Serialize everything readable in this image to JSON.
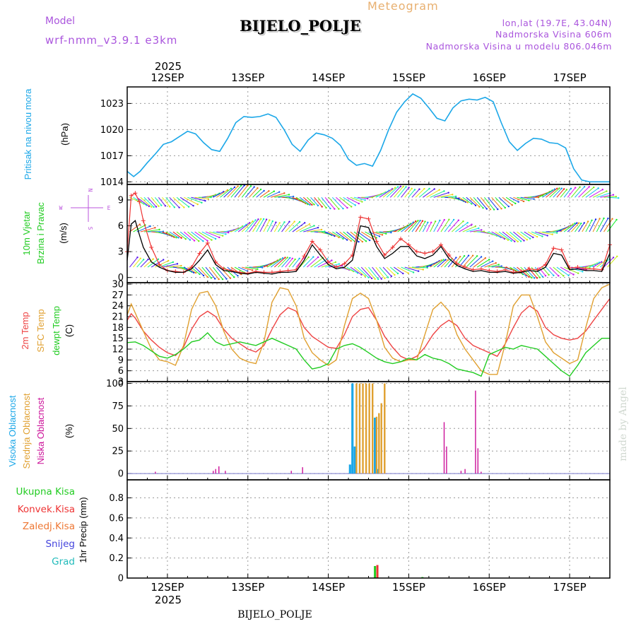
{
  "header": {
    "model_label": "Model",
    "model_value": "wrf-nmm_v3.9.1  e3km",
    "product": "Meteogram",
    "station": "BIJELO_POLJE",
    "coords": "lon,lat (19.7E, 43.04N)",
    "elev": "Nadmorska Visina 606m",
    "elev_model": "Nadmorska Visina u modelu 806.046m",
    "footer_station": "BIJELO_POLJE",
    "credit": "made by Angel"
  },
  "time_axis": {
    "year": "2025",
    "days": [
      "12SEP",
      "13SEP",
      "14SEP",
      "15SEP",
      "16SEP",
      "17SEP"
    ],
    "day_positions": [
      1,
      2,
      3,
      4,
      5,
      6
    ],
    "range": [
      0.5,
      6.5
    ]
  },
  "colors": {
    "pressure": "#1ba7e8",
    "wind_label": "#22cc22",
    "wind_speed": "#000000",
    "gust": "#ee3333",
    "t2m": "#ee4444",
    "sfc": "#e0a030",
    "dew": "#22cc22",
    "high_cloud": "#1ba7e8",
    "mid_cloud": "#e0a030",
    "low_cloud": "#cc1199",
    "total_precip": "#22cc22",
    "conv_precip": "#ee3333",
    "frozen": "#ee7733",
    "snow": "#4444dd",
    "graupel": "#22bbbb",
    "compass": "#bb55dd"
  },
  "chart_data": [
    {
      "type": "line",
      "ylabel_main": "Pritisak na nivou mora",
      "ylabel_unit": "(hPa)",
      "ylim": [
        1013.7,
        1024.9
      ],
      "yticks": [
        1014,
        1017,
        1020,
        1023
      ],
      "series": [
        {
          "x": [
            0.5,
            0.58,
            0.66,
            0.75,
            0.85,
            0.95,
            1.05,
            1.15,
            1.25,
            1.35,
            1.45,
            1.55,
            1.65,
            1.75,
            1.85,
            1.95,
            2.05,
            2.15,
            2.25,
            2.35,
            2.45,
            2.55,
            2.65,
            2.75,
            2.85,
            2.95,
            3.05,
            3.15,
            3.25,
            3.35,
            3.45,
            3.55,
            3.65,
            3.75,
            3.85,
            3.95,
            4.05,
            4.15,
            4.25,
            4.35,
            4.45,
            4.55,
            4.65,
            4.75,
            4.85,
            4.95,
            5.05,
            5.15,
            5.25,
            5.35,
            5.45,
            5.55,
            5.65,
            5.75,
            5.85,
            5.95,
            6.05,
            6.15,
            6.25,
            6.35,
            6.5
          ],
          "y": [
            1015.2,
            1014.6,
            1015.2,
            1016.2,
            1017.2,
            1018.3,
            1018.6,
            1019.2,
            1019.8,
            1019.5,
            1018.5,
            1017.7,
            1017.5,
            1019.0,
            1020.8,
            1021.5,
            1021.4,
            1021.5,
            1021.8,
            1021.4,
            1020.0,
            1018.3,
            1017.5,
            1018.8,
            1019.6,
            1019.4,
            1019.0,
            1018.2,
            1016.6,
            1015.9,
            1016.1,
            1015.8,
            1017.6,
            1020.0,
            1022.0,
            1023.2,
            1024.1,
            1023.6,
            1022.5,
            1021.3,
            1021.0,
            1022.5,
            1023.3,
            1023.5,
            1023.4,
            1023.7,
            1023.2,
            1020.8,
            1018.6,
            1017.6,
            1018.4,
            1019.0,
            1018.9,
            1018.5,
            1018.4,
            1017.9,
            1015.5,
            1014.2,
            1014.0,
            1014.0,
            1014.0
          ]
        }
      ]
    },
    {
      "type": "line",
      "ylabel_main": "10m Vjetar",
      "ylabel_sub": "Brzina i Pravac",
      "ylabel_unit": "(m/s)",
      "compass": {
        "n": "N",
        "s": "S",
        "w": "W",
        "e": "E"
      },
      "ylim": [
        -0.6,
        10.8
      ],
      "yticks": [
        0,
        3,
        6,
        9
      ],
      "wind_rows": [
        1.2,
        5.3,
        9.3
      ],
      "series": [
        {
          "name": "wind",
          "x": [
            0.5,
            0.55,
            0.6,
            0.65,
            0.7,
            0.8,
            0.9,
            1.0,
            1.1,
            1.2,
            1.3,
            1.4,
            1.5,
            1.6,
            1.7,
            1.8,
            1.9,
            2.0,
            2.1,
            2.2,
            2.3,
            2.4,
            2.5,
            2.6,
            2.7,
            2.8,
            2.9,
            3.0,
            3.1,
            3.2,
            3.3,
            3.4,
            3.5,
            3.6,
            3.7,
            3.8,
            3.9,
            4.0,
            4.1,
            4.2,
            4.3,
            4.4,
            4.5,
            4.6,
            4.7,
            4.8,
            4.9,
            5.0,
            5.1,
            5.2,
            5.3,
            5.4,
            5.5,
            5.6,
            5.7,
            5.8,
            5.9,
            6.0,
            6.1,
            6.2,
            6.3,
            6.4,
            6.5
          ],
          "y": [
            2.0,
            6.2,
            6.6,
            5.0,
            3.5,
            1.8,
            1.2,
            0.8,
            0.6,
            0.6,
            1.0,
            2.0,
            3.2,
            1.5,
            0.8,
            0.7,
            0.5,
            0.4,
            0.6,
            0.5,
            0.4,
            0.6,
            0.6,
            0.7,
            2.0,
            3.8,
            2.6,
            1.5,
            1.0,
            1.2,
            2.0,
            6.0,
            5.8,
            3.6,
            2.2,
            2.8,
            3.6,
            3.6,
            2.5,
            2.2,
            2.6,
            3.6,
            2.2,
            1.4,
            1.0,
            0.7,
            0.8,
            0.6,
            0.6,
            0.7,
            0.5,
            0.6,
            0.8,
            0.7,
            1.2,
            2.8,
            2.6,
            0.9,
            1.0,
            0.8,
            0.8,
            0.7,
            2.8
          ]
        },
        {
          "name": "gust",
          "x": [
            0.5,
            0.55,
            0.6,
            0.65,
            0.7,
            0.8,
            0.9,
            1.0,
            1.1,
            1.2,
            1.3,
            1.4,
            1.5,
            1.6,
            1.7,
            1.8,
            1.9,
            2.0,
            2.1,
            2.2,
            2.3,
            2.4,
            2.5,
            2.6,
            2.7,
            2.8,
            2.9,
            3.0,
            3.1,
            3.2,
            3.3,
            3.4,
            3.5,
            3.6,
            3.7,
            3.8,
            3.9,
            4.0,
            4.1,
            4.2,
            4.3,
            4.4,
            4.5,
            4.6,
            4.7,
            4.8,
            4.9,
            5.0,
            5.1,
            5.2,
            5.3,
            5.4,
            5.5,
            5.6,
            5.7,
            5.8,
            5.9,
            6.0,
            6.1,
            6.2,
            6.3,
            6.4,
            6.5
          ],
          "y": [
            3.0,
            9.5,
            9.8,
            8.8,
            6.6,
            3.5,
            1.5,
            0.8,
            0.7,
            0.6,
            1.2,
            2.8,
            4.0,
            1.8,
            1.0,
            0.8,
            0.6,
            0.5,
            0.7,
            0.6,
            0.6,
            0.7,
            0.8,
            0.9,
            2.5,
            4.2,
            3.2,
            1.8,
            1.2,
            1.6,
            2.6,
            7.0,
            6.8,
            4.2,
            2.6,
            3.5,
            4.5,
            3.8,
            3.0,
            2.8,
            3.0,
            3.8,
            2.6,
            1.6,
            1.2,
            0.9,
            1.0,
            0.8,
            0.7,
            0.9,
            0.6,
            0.7,
            1.0,
            0.9,
            1.5,
            3.4,
            3.2,
            1.1,
            1.2,
            1.0,
            1.0,
            0.9,
            3.8
          ]
        }
      ]
    },
    {
      "type": "line",
      "ylabel_a": "2m Temp",
      "ylabel_b": "SFC Temp",
      "ylabel_c": "dewpt Temp",
      "ylabel_unit": "(C)",
      "ylim": [
        3,
        30.4
      ],
      "yticks": [
        3,
        6,
        9,
        12,
        15,
        18,
        21,
        24,
        27,
        30
      ],
      "series": [
        {
          "name": "t2m",
          "x": [
            0.5,
            0.55,
            0.6,
            0.7,
            0.8,
            0.9,
            1.0,
            1.1,
            1.2,
            1.3,
            1.4,
            1.5,
            1.6,
            1.7,
            1.8,
            1.9,
            2.0,
            2.1,
            2.2,
            2.3,
            2.4,
            2.5,
            2.6,
            2.7,
            2.8,
            2.9,
            3.0,
            3.1,
            3.2,
            3.3,
            3.4,
            3.5,
            3.6,
            3.7,
            3.8,
            3.9,
            4.0,
            4.1,
            4.2,
            4.3,
            4.4,
            4.5,
            4.6,
            4.7,
            4.8,
            4.9,
            5.0,
            5.1,
            5.2,
            5.3,
            5.4,
            5.5,
            5.6,
            5.7,
            5.8,
            5.9,
            6.0,
            6.1,
            6.2,
            6.3,
            6.4,
            6.5
          ],
          "y": [
            20.0,
            21.8,
            20.6,
            17.0,
            14.5,
            12.5,
            11.0,
            10.2,
            12.5,
            17.5,
            21.0,
            22.5,
            21.0,
            17.5,
            15.0,
            13.5,
            12.0,
            11.2,
            13.0,
            17.5,
            21.5,
            23.5,
            22.5,
            18.0,
            15.5,
            14.0,
            12.5,
            12.2,
            16.0,
            21.0,
            23.0,
            23.5,
            20.0,
            15.5,
            12.5,
            10.0,
            9.0,
            10.0,
            12.5,
            16.0,
            18.5,
            20.0,
            18.5,
            15.0,
            13.0,
            12.0,
            11.0,
            10.0,
            13.5,
            18.0,
            22.0,
            24.0,
            22.5,
            18.0,
            16.0,
            15.0,
            14.5,
            15.0,
            17.0,
            20.0,
            23.0,
            26.0
          ]
        },
        {
          "name": "sfc",
          "x": [
            0.5,
            0.55,
            0.6,
            0.7,
            0.8,
            0.9,
            1.0,
            1.1,
            1.2,
            1.3,
            1.4,
            1.5,
            1.6,
            1.7,
            1.8,
            1.9,
            2.0,
            2.1,
            2.2,
            2.3,
            2.4,
            2.5,
            2.6,
            2.7,
            2.8,
            2.9,
            3.0,
            3.1,
            3.2,
            3.3,
            3.4,
            3.5,
            3.6,
            3.7,
            3.8,
            3.9,
            4.0,
            4.1,
            4.2,
            4.3,
            4.4,
            4.5,
            4.6,
            4.7,
            4.8,
            4.9,
            5.0,
            5.1,
            5.2,
            5.3,
            5.4,
            5.5,
            5.6,
            5.7,
            5.8,
            5.9,
            6.0,
            6.1,
            6.2,
            6.3,
            6.4,
            6.5
          ],
          "y": [
            21.5,
            24.5,
            22.0,
            17.0,
            12.0,
            9.0,
            8.5,
            7.5,
            13.0,
            23.0,
            27.5,
            28.0,
            24.0,
            17.0,
            12.0,
            9.5,
            8.5,
            8.0,
            14.0,
            25.0,
            29.0,
            28.5,
            24.0,
            15.0,
            11.0,
            9.0,
            7.5,
            9.0,
            18.5,
            26.0,
            27.5,
            26.0,
            20.0,
            12.5,
            9.5,
            8.5,
            9.0,
            9.0,
            16.0,
            23.0,
            25.0,
            22.5,
            16.0,
            12.0,
            9.0,
            6.0,
            5.0,
            5.0,
            13.5,
            24.0,
            27.0,
            27.0,
            21.0,
            14.0,
            11.0,
            9.5,
            8.0,
            9.0,
            18.0,
            26.0,
            29.0,
            30.0
          ]
        },
        {
          "name": "dew",
          "x": [
            0.5,
            0.6,
            0.7,
            0.8,
            0.9,
            1.0,
            1.1,
            1.2,
            1.3,
            1.4,
            1.5,
            1.6,
            1.7,
            1.8,
            1.9,
            2.0,
            2.1,
            2.2,
            2.3,
            2.4,
            2.5,
            2.6,
            2.7,
            2.8,
            2.9,
            3.0,
            3.1,
            3.2,
            3.3,
            3.4,
            3.5,
            3.6,
            3.7,
            3.8,
            3.9,
            4.0,
            4.1,
            4.2,
            4.3,
            4.4,
            4.5,
            4.6,
            4.7,
            4.8,
            4.9,
            5.0,
            5.1,
            5.2,
            5.3,
            5.4,
            5.5,
            5.6,
            5.7,
            5.8,
            5.9,
            6.0,
            6.1,
            6.2,
            6.3,
            6.4,
            6.5
          ],
          "y": [
            13.8,
            14.0,
            13.0,
            11.5,
            10.0,
            9.5,
            10.5,
            12.0,
            14.0,
            14.5,
            16.5,
            14.0,
            13.0,
            13.5,
            14.0,
            13.5,
            13.0,
            14.0,
            15.0,
            14.0,
            13.0,
            12.0,
            9.0,
            6.5,
            7.0,
            8.0,
            12.0,
            13.0,
            13.5,
            12.5,
            11.0,
            9.5,
            8.5,
            8.0,
            8.5,
            9.5,
            9.0,
            10.5,
            9.5,
            9.0,
            8.0,
            6.5,
            6.0,
            5.5,
            4.5,
            10.5,
            11.5,
            12.5,
            12.0,
            13.0,
            12.5,
            12.0,
            10.0,
            8.0,
            6.0,
            4.5,
            7.5,
            11.0,
            13.0,
            15.0,
            15.0
          ]
        }
      ]
    },
    {
      "type": "bar",
      "ylabel_a": "Visoka Oblacnost",
      "ylabel_b": "Srednja Oblacnost",
      "ylabel_c": "Niska  Oblacnost",
      "ylabel_unit": "(%)",
      "ylim": [
        -7,
        102
      ],
      "yticks": [
        0,
        25,
        50,
        75,
        100
      ],
      "series": [
        {
          "name": "high",
          "x": [
            3.27,
            3.3,
            3.33,
            3.58,
            3.62
          ],
          "y": [
            10,
            100,
            30,
            62,
            5
          ]
        },
        {
          "name": "mid",
          "x": [
            3.35,
            3.39,
            3.43,
            3.47,
            3.51,
            3.55,
            3.6,
            3.63,
            3.66,
            3.7
          ],
          "y": [
            100,
            100,
            100,
            100,
            100,
            100,
            63,
            67,
            78,
            100
          ]
        },
        {
          "name": "low",
          "x": [
            0.85,
            1.57,
            1.6,
            1.64,
            1.72,
            2.54,
            2.68,
            4.44,
            4.47,
            4.65,
            4.7,
            4.83,
            4.86,
            4.9
          ],
          "y": [
            2,
            3,
            5,
            8,
            3,
            3,
            7,
            57,
            30,
            3,
            5,
            92,
            28,
            2
          ]
        }
      ]
    },
    {
      "type": "bar",
      "legend": [
        "Ukupna  Kisa",
        "Konvek.Kisa",
        "Zaledj.Kisa",
        "Snijeg",
        "Grad"
      ],
      "ylabel_unit": "1hr Precip (mm)",
      "ylim": [
        0,
        0.98
      ],
      "yticks": [
        0,
        0.2,
        0.4,
        0.6,
        0.8
      ],
      "series": [
        {
          "name": "total",
          "x": [
            3.58,
            4.17
          ],
          "y": [
            0.12,
            0.01
          ]
        },
        {
          "name": "conv",
          "x": [
            3.61
          ],
          "y": [
            0.13
          ]
        }
      ]
    }
  ]
}
